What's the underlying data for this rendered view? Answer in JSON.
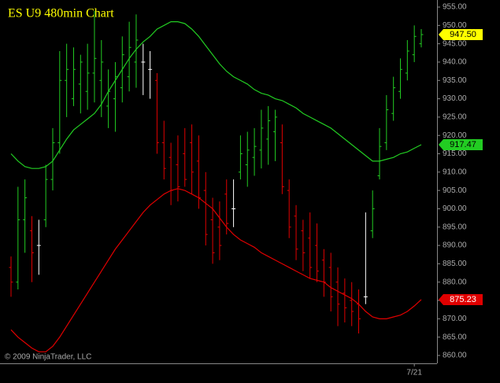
{
  "chart_data": {
    "type": "ohlc",
    "title": "ES U9 480min Chart",
    "copyright": "© 2009 NinjaTrader, LLC",
    "ylim": [
      857.85,
      956.93
    ],
    "yticks": [
      {
        "value": 860,
        "label": "860.00"
      },
      {
        "value": 865,
        "label": "865.00"
      },
      {
        "value": 870,
        "label": "870.00"
      },
      {
        "value": 875,
        "label": "875.00"
      },
      {
        "value": 880,
        "label": "880.00"
      },
      {
        "value": 885,
        "label": "885.00"
      },
      {
        "value": 890,
        "label": "890.00"
      },
      {
        "value": 895,
        "label": "895.00"
      },
      {
        "value": 900,
        "label": "900.00"
      },
      {
        "value": 905,
        "label": "905.00"
      },
      {
        "value": 910,
        "label": "910.00"
      },
      {
        "value": 915,
        "label": "915.00"
      },
      {
        "value": 920,
        "label": "920.00"
      },
      {
        "value": 925,
        "label": "925.00"
      },
      {
        "value": 930,
        "label": "930.00"
      },
      {
        "value": 935,
        "label": "935.00"
      },
      {
        "value": 940,
        "label": "940.00"
      },
      {
        "value": 945,
        "label": "945.00"
      },
      {
        "value": 950,
        "label": "950.00"
      },
      {
        "value": 955,
        "label": "955.00"
      }
    ],
    "categories": [
      null,
      null,
      null,
      null,
      null,
      null,
      null,
      null,
      null,
      null,
      null,
      null,
      null,
      null,
      null,
      null,
      null,
      null,
      null,
      null,
      null,
      null,
      null,
      null,
      null,
      null,
      null,
      null,
      null,
      null,
      null,
      null,
      null,
      null,
      null,
      null,
      null,
      null,
      null,
      null,
      null,
      null,
      null,
      null,
      null,
      null,
      null,
      null,
      null,
      null,
      null,
      null,
      null,
      null,
      null,
      null,
      null,
      null,
      "7/21",
      null
    ],
    "open": [
      884,
      880,
      897,
      894,
      890,
      897,
      908,
      918,
      935,
      930,
      934,
      932,
      937,
      935,
      928,
      930,
      933,
      936,
      940,
      940,
      938,
      935,
      918,
      914,
      912,
      915,
      918,
      913,
      905,
      897,
      895,
      904,
      900,
      910,
      912,
      914,
      916,
      919,
      921,
      918,
      905,
      898,
      894,
      892,
      890,
      886,
      884,
      880,
      877,
      875,
      874,
      876,
      894,
      909,
      918,
      926,
      932,
      937,
      942,
      945
    ],
    "high": [
      887,
      906,
      908,
      898,
      897,
      912,
      922,
      943,
      945,
      944,
      942,
      945,
      954,
      946,
      938,
      940,
      947,
      951,
      953,
      945,
      943,
      937,
      924,
      918,
      920,
      922,
      923,
      920,
      910,
      903,
      902,
      908,
      908,
      920,
      921,
      922,
      927,
      928,
      927,
      923,
      908,
      901,
      897,
      899,
      896,
      889,
      888,
      884,
      881,
      880,
      878,
      899,
      905,
      922,
      931,
      936,
      941,
      946,
      950,
      949
    ],
    "low": [
      876,
      878,
      888,
      880,
      882,
      895,
      905,
      915,
      925,
      928,
      926,
      927,
      929,
      925,
      922,
      921,
      929,
      932,
      933,
      931,
      930,
      915,
      908,
      901,
      902,
      906,
      904,
      900,
      890,
      885,
      886,
      893,
      895,
      908,
      906,
      909,
      911,
      912,
      913,
      904,
      892,
      886,
      883,
      881,
      880,
      876,
      872,
      868,
      869,
      868,
      866,
      874,
      892,
      908,
      916,
      924,
      930,
      935,
      940,
      944
    ],
    "close": [
      880,
      897,
      903,
      888,
      890,
      908,
      918,
      935,
      938,
      938,
      940,
      937,
      941,
      940,
      932,
      936,
      942,
      944,
      946,
      940,
      938,
      918,
      911,
      905,
      906,
      908,
      910,
      903,
      893,
      888,
      890,
      896,
      900,
      915,
      916,
      917,
      922,
      924,
      925,
      906,
      895,
      889,
      888,
      884,
      883,
      880,
      876,
      874,
      873,
      872,
      870,
      876,
      900,
      917,
      927,
      933,
      938,
      943,
      947,
      947.5
    ],
    "last_label": "947.50",
    "up_color": "#22cc22",
    "down_color": "#e00000",
    "flat_color": "#ffffff",
    "series": [
      {
        "color": "#22cc22",
        "last_label": "917.47",
        "values": [
          915,
          913,
          911.5,
          911,
          911,
          911.5,
          913,
          916,
          919,
          921.5,
          923,
          924.5,
          926,
          928.5,
          932,
          935,
          938,
          941,
          943.5,
          945.5,
          947,
          949,
          950,
          951,
          951,
          950.5,
          949,
          947,
          944.5,
          942,
          939.5,
          937.5,
          936,
          935,
          934,
          932.5,
          931.5,
          931,
          930,
          929.5,
          928.5,
          927.5,
          926,
          925,
          924,
          923,
          922,
          920.5,
          919,
          917.5,
          916,
          914.5,
          913,
          913,
          913.5,
          914,
          915,
          915.5,
          916.5,
          917.47
        ]
      },
      {
        "color": "#e00000",
        "last_label": "875.23",
        "values": [
          867,
          865,
          863.5,
          862,
          861,
          861,
          862.5,
          865,
          868,
          871,
          874,
          877,
          880,
          883,
          886,
          889,
          891.5,
          894,
          896.5,
          899,
          901,
          902.5,
          904,
          905,
          905.5,
          905,
          904,
          903,
          901.5,
          900,
          897.5,
          895,
          893,
          891.5,
          890.5,
          889.5,
          888,
          887,
          886,
          885,
          884,
          883,
          882,
          881,
          880.5,
          880,
          878.5,
          877.5,
          876.5,
          875.5,
          874,
          872,
          870.5,
          870,
          870,
          870.5,
          871,
          872,
          873.5,
          875.23
        ]
      }
    ]
  }
}
